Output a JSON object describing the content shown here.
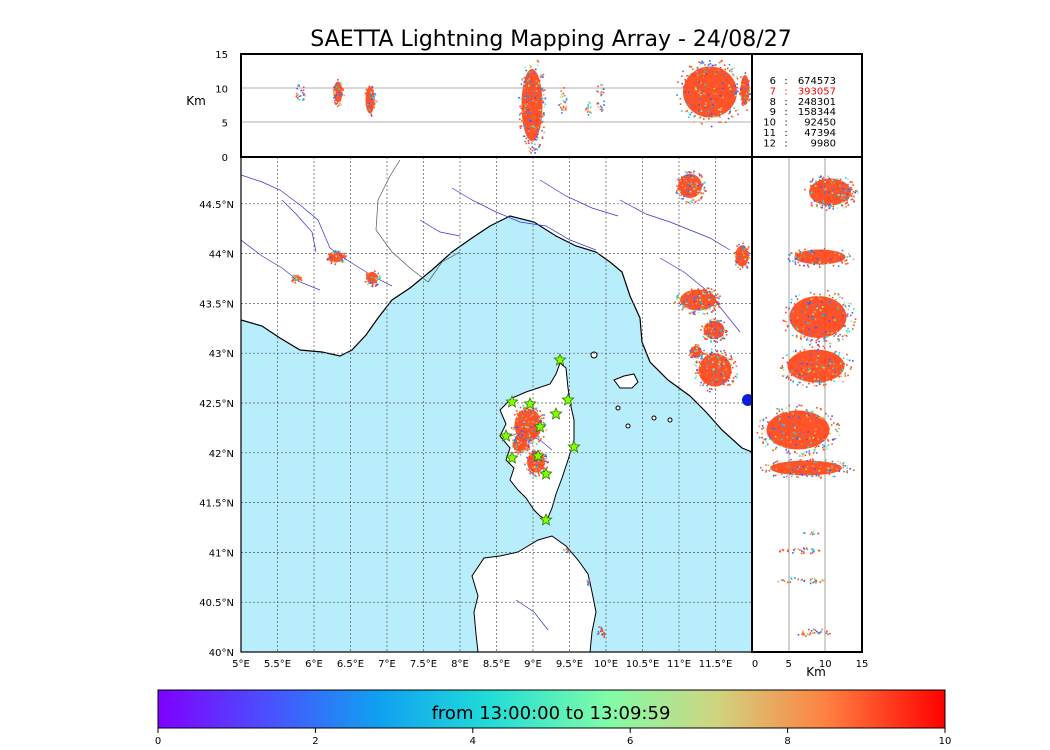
{
  "title": "SAETTA Lightning Mapping Array - 24/08/27",
  "altitude_axis": {
    "unit": "Km",
    "ticks": [
      "0",
      "5",
      "10",
      "15"
    ]
  },
  "lat_ticks": [
    "40°N",
    "40.5°N",
    "41°N",
    "41.5°N",
    "42°N",
    "42.5°N",
    "43°N",
    "43.5°N",
    "44°N",
    "44.5°N"
  ],
  "lon_ticks": [
    "5°E",
    "5.5°E",
    "6°E",
    "6.5°E",
    "7°E",
    "7.5°E",
    "8°E",
    "8.5°E",
    "9°E",
    "9.5°E",
    "10°E",
    "10.5°E",
    "11°E",
    "11.5°E"
  ],
  "stations": [
    {
      "id": "6",
      "count": "674573",
      "color": "#000000"
    },
    {
      "id": "7",
      "count": "393057",
      "color": "#ff0000"
    },
    {
      "id": "8",
      "count": "248301",
      "color": "#000000"
    },
    {
      "id": "9",
      "count": "158344",
      "color": "#000000"
    },
    {
      "id": "10",
      "count": "92450",
      "color": "#000000"
    },
    {
      "id": "11",
      "count": "47394",
      "color": "#000000"
    },
    {
      "id": "12",
      "count": "9980",
      "color": "#000000"
    }
  ],
  "colorbar": {
    "label": "from 13:00:00 to 13:09:59",
    "ticks": [
      "0",
      "2",
      "4",
      "6",
      "8",
      "10"
    ],
    "colormap": "rainbow"
  },
  "colors": {
    "sea": "#b8eefc",
    "land": "#ffffff",
    "rivers": "#3333cc",
    "star": "#88ff00",
    "dominant_source": "#ff4a1e"
  }
}
